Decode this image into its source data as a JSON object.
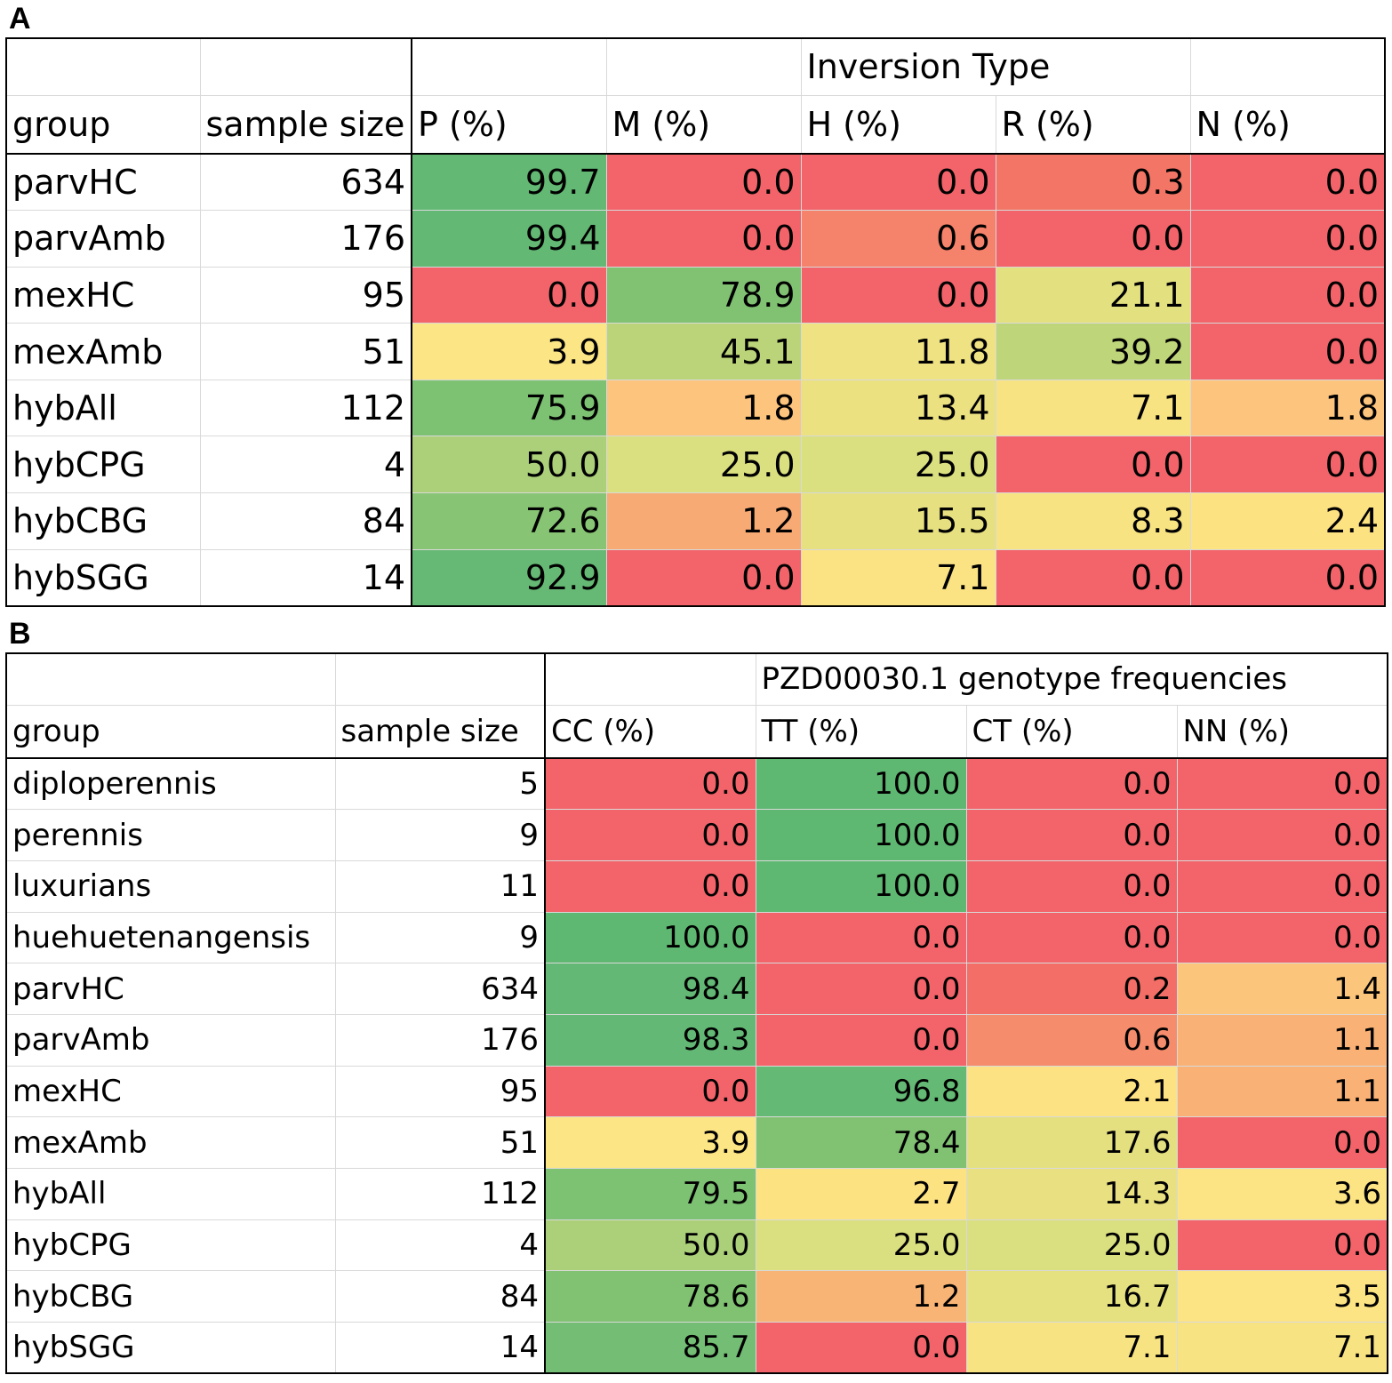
{
  "panels": {
    "a": {
      "label": "A"
    },
    "b": {
      "label": "B"
    }
  },
  "chart_data": [
    {
      "type": "table",
      "panel": "A",
      "title": "Inversion Type",
      "columns": [
        "group",
        "sample size",
        "P (%)",
        "M (%)",
        "H (%)",
        "R (%)",
        "N (%)"
      ],
      "rows": [
        {
          "group": "parvHC",
          "sample_size": 634,
          "values": [
            99.7,
            0.0,
            0.0,
            0.3,
            0.0
          ],
          "colors": [
            "#63b874",
            "#f2646a",
            "#f2646a",
            "#f27566",
            "#f2646a"
          ]
        },
        {
          "group": "parvAmb",
          "sample_size": 176,
          "values": [
            99.4,
            0.0,
            0.6,
            0.0,
            0.0
          ],
          "colors": [
            "#63b874",
            "#f2646a",
            "#f5826a",
            "#f2646a",
            "#f2646a"
          ]
        },
        {
          "group": "mexHC",
          "sample_size": 95,
          "values": [
            0.0,
            78.9,
            0.0,
            21.1,
            0.0
          ],
          "colors": [
            "#f2646a",
            "#80c172",
            "#f2646a",
            "#e3e07f",
            "#f2646a"
          ]
        },
        {
          "group": "mexAmb",
          "sample_size": 51,
          "values": [
            3.9,
            45.1,
            11.8,
            39.2,
            0.0
          ],
          "colors": [
            "#fbe585",
            "#bcd479",
            "#efe283",
            "#bfd57a",
            "#f2646a"
          ]
        },
        {
          "group": "hybAll",
          "sample_size": 112,
          "values": [
            75.9,
            1.8,
            13.4,
            7.1,
            1.8
          ],
          "colors": [
            "#7dc173",
            "#fcc47c",
            "#ebe181",
            "#f8e382",
            "#fcc47c"
          ]
        },
        {
          "group": "hybCPG",
          "sample_size": 4,
          "values": [
            50.0,
            25.0,
            25.0,
            0.0,
            0.0
          ],
          "colors": [
            "#acd07a",
            "#dadf7f",
            "#dadf7f",
            "#f2646a",
            "#f2646a"
          ]
        },
        {
          "group": "hybCBG",
          "sample_size": 84,
          "values": [
            72.6,
            1.2,
            15.5,
            8.3,
            2.4
          ],
          "colors": [
            "#87c474",
            "#f8aa74",
            "#e6e080",
            "#f7e382",
            "#fde282"
          ]
        },
        {
          "group": "hybSGG",
          "sample_size": 14,
          "values": [
            92.9,
            0.0,
            7.1,
            0.0,
            0.0
          ],
          "colors": [
            "#66b974",
            "#f2646a",
            "#fbe384",
            "#f2646a",
            "#f2646a"
          ]
        }
      ]
    },
    {
      "type": "table",
      "panel": "B",
      "title": "PZD00030.1 genotype frequencies",
      "columns": [
        "group",
        "sample size",
        "CC (%)",
        "TT (%)",
        "CT (%)",
        "NN (%)"
      ],
      "rows": [
        {
          "group": "diploperennis",
          "sample_size": 5,
          "values": [
            0.0,
            100.0,
            0.0,
            0.0
          ],
          "colors": [
            "#f2646a",
            "#5fb872",
            "#f2646a",
            "#f2646a"
          ]
        },
        {
          "group": "perennis",
          "sample_size": 9,
          "values": [
            0.0,
            100.0,
            0.0,
            0.0
          ],
          "colors": [
            "#f2646a",
            "#5fb872",
            "#f2646a",
            "#f2646a"
          ]
        },
        {
          "group": "luxurians",
          "sample_size": 11,
          "values": [
            0.0,
            100.0,
            0.0,
            0.0
          ],
          "colors": [
            "#f2646a",
            "#5fb872",
            "#f2646a",
            "#f2646a"
          ]
        },
        {
          "group": "huehuetenangensis",
          "sample_size": 9,
          "values": [
            100.0,
            0.0,
            0.0,
            0.0
          ],
          "colors": [
            "#5fb872",
            "#f2646a",
            "#f2646a",
            "#f2646a"
          ]
        },
        {
          "group": "parvHC",
          "sample_size": 634,
          "values": [
            98.4,
            0.0,
            0.2,
            1.4
          ],
          "colors": [
            "#62b874",
            "#f2646a",
            "#f26e67",
            "#fbc67c"
          ]
        },
        {
          "group": "parvAmb",
          "sample_size": 176,
          "values": [
            98.3,
            0.0,
            0.6,
            1.1
          ],
          "colors": [
            "#62b874",
            "#f2646a",
            "#f58c6c",
            "#f9b176"
          ]
        },
        {
          "group": "mexHC",
          "sample_size": 95,
          "values": [
            0.0,
            96.8,
            2.1,
            1.1
          ],
          "colors": [
            "#f2646a",
            "#64b974",
            "#fde283",
            "#f9b176"
          ]
        },
        {
          "group": "mexAmb",
          "sample_size": 51,
          "values": [
            3.9,
            78.4,
            17.6,
            0.0
          ],
          "colors": [
            "#fbe585",
            "#80c172",
            "#e4e080",
            "#f2646a"
          ]
        },
        {
          "group": "hybAll",
          "sample_size": 112,
          "values": [
            79.5,
            2.7,
            14.3,
            3.6
          ],
          "colors": [
            "#7dc173",
            "#fde282",
            "#e8e081",
            "#fce383"
          ]
        },
        {
          "group": "hybCPG",
          "sample_size": 4,
          "values": [
            50.0,
            25.0,
            25.0,
            0.0
          ],
          "colors": [
            "#acd07a",
            "#dadf7f",
            "#dadf7f",
            "#f2646a"
          ]
        },
        {
          "group": "hybCBG",
          "sample_size": 84,
          "values": [
            78.6,
            1.2,
            16.7,
            3.5
          ],
          "colors": [
            "#80c172",
            "#f8b475",
            "#e5e080",
            "#fce383"
          ]
        },
        {
          "group": "hybSGG",
          "sample_size": 14,
          "values": [
            85.7,
            0.0,
            7.1,
            7.1
          ],
          "colors": [
            "#73bd74",
            "#f2646a",
            "#f8e382",
            "#f8e382"
          ]
        }
      ]
    }
  ]
}
